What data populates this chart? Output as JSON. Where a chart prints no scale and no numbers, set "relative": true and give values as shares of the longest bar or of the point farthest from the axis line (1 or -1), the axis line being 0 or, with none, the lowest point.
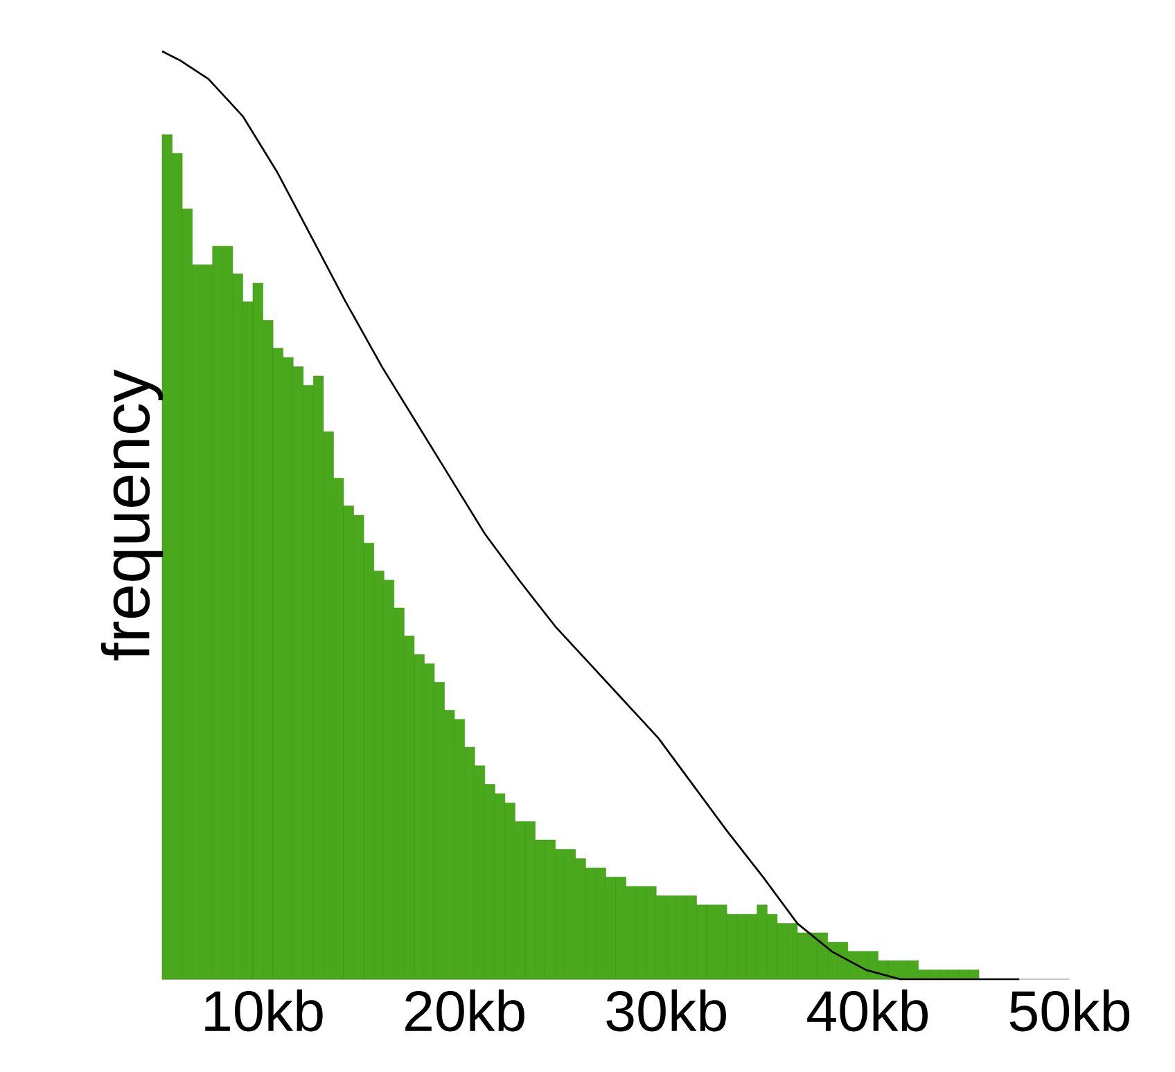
{
  "chart_data": {
    "type": "histogram",
    "relative": true,
    "ylabel": "frequency",
    "xlim": [
      5,
      50
    ],
    "xticks": [
      {
        "value": 10,
        "label": "10kb"
      },
      {
        "value": 20,
        "label": "20kb"
      },
      {
        "value": 30,
        "label": "30kb"
      },
      {
        "value": 40,
        "label": "40kb"
      },
      {
        "value": 50,
        "label": "50kb"
      }
    ],
    "series": [
      {
        "color": "#4aa81c",
        "bins": [
          5,
          5.5,
          6,
          6.5,
          7,
          7.5,
          8,
          8.5,
          9,
          9.5,
          10,
          10.5,
          11,
          11.5,
          12,
          12.5,
          13,
          13.5,
          14,
          14.5,
          15,
          15.5,
          16,
          16.5,
          17,
          17.5,
          18,
          18.5,
          19,
          19.5,
          20,
          20.5,
          21,
          21.5,
          22,
          22.5,
          23,
          23.5,
          24,
          24.5,
          25,
          25.5,
          26,
          26.5,
          27,
          27.5,
          28,
          28.5,
          29,
          29.5,
          30,
          30.5,
          31,
          31.5,
          32,
          32.5,
          33,
          33.5,
          34,
          34.5,
          35,
          35.5,
          36,
          36.5,
          37,
          37.5,
          38,
          38.5,
          39,
          39.5,
          40,
          40.5,
          41,
          41.5,
          42,
          42.5,
          43,
          43.5,
          44,
          44.5,
          45,
          45.5
        ],
        "values": [
          0.91,
          0.89,
          0.83,
          0.77,
          0.77,
          0.79,
          0.79,
          0.76,
          0.73,
          0.75,
          0.71,
          0.68,
          0.67,
          0.66,
          0.64,
          0.65,
          0.59,
          0.54,
          0.51,
          0.5,
          0.47,
          0.44,
          0.43,
          0.4,
          0.37,
          0.35,
          0.34,
          0.32,
          0.29,
          0.28,
          0.25,
          0.23,
          0.21,
          0.2,
          0.19,
          0.17,
          0.17,
          0.15,
          0.15,
          0.14,
          0.14,
          0.13,
          0.12,
          0.12,
          0.11,
          0.11,
          0.1,
          0.1,
          0.1,
          0.09,
          0.09,
          0.09,
          0.09,
          0.08,
          0.08,
          0.08,
          0.07,
          0.07,
          0.07,
          0.08,
          0.07,
          0.06,
          0.06,
          0.05,
          0.05,
          0.05,
          0.04,
          0.04,
          0.03,
          0.03,
          0.03,
          0.02,
          0.02,
          0.02,
          0.02,
          0.01,
          0.01,
          0.01,
          0.01,
          0.01,
          0.01
        ]
      },
      {
        "type": "line",
        "color": "#000000",
        "x": [
          5.0,
          5.9,
          7.3,
          9.0,
          10.7,
          12.4,
          14.1,
          15.9,
          17.6,
          19.3,
          21.0,
          22.7,
          24.5,
          26.2,
          27.9,
          29.6,
          31.3,
          33.0,
          34.8,
          36.5,
          38.2,
          39.9,
          41.6,
          45.1,
          47.5
        ],
        "values": [
          1.0,
          0.99,
          0.97,
          0.93,
          0.87,
          0.8,
          0.73,
          0.66,
          0.6,
          0.54,
          0.48,
          0.43,
          0.38,
          0.34,
          0.3,
          0.26,
          0.21,
          0.16,
          0.11,
          0.06,
          0.03,
          0.01,
          0.0,
          0.0,
          0.0
        ]
      }
    ]
  }
}
